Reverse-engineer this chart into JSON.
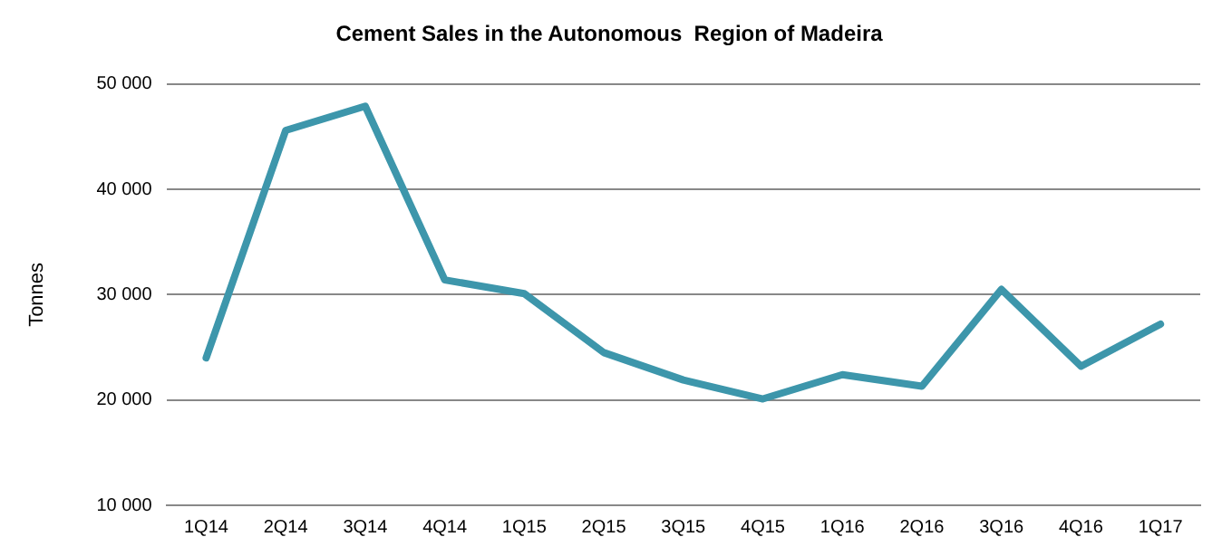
{
  "chart_data": {
    "type": "line",
    "title": "Cement Sales in the Autonomous  Region of Madeira",
    "ylabel": "Tonnes",
    "categories": [
      "1Q14",
      "2Q14",
      "3Q14",
      "4Q14",
      "1Q15",
      "2Q15",
      "3Q15",
      "4Q15",
      "1Q16",
      "2Q16",
      "3Q16",
      "4Q16",
      "1Q17"
    ],
    "series": [
      {
        "color": "#3d96ab",
        "values": [
          24000,
          45600,
          47900,
          31400,
          30100,
          24500,
          21900,
          20100,
          22400,
          21300,
          30500,
          23200,
          27200
        ]
      }
    ],
    "ylim": [
      10000,
      50000
    ],
    "yticks": [
      {
        "value": 10000,
        "label": "10 000"
      },
      {
        "value": 20000,
        "label": "20 000"
      },
      {
        "value": 30000,
        "label": "30 000"
      },
      {
        "value": 40000,
        "label": "40 000"
      },
      {
        "value": 50000,
        "label": "50 000"
      }
    ],
    "grid": "y",
    "legend": false,
    "marker": "none",
    "line_style": "solid"
  }
}
